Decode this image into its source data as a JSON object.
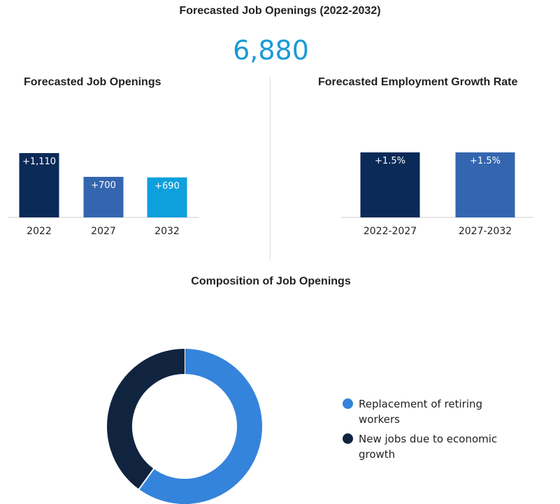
{
  "header": {
    "title": "Forecasted Job Openings (2022-2032)",
    "total": "6,880"
  },
  "chart_data": [
    {
      "type": "bar",
      "title": "Forecasted Job Openings",
      "categories": [
        "2022",
        "2027",
        "2032"
      ],
      "values": [
        1110,
        700,
        690
      ],
      "labels": [
        "+1,110",
        "+700",
        "+690"
      ],
      "colors": [
        "#0b2a58",
        "#3466b0",
        "#0ea0dd"
      ]
    },
    {
      "type": "bar",
      "title": "Forecasted Employment Growth Rate",
      "categories": [
        "2022-2027",
        "2027-2032"
      ],
      "values": [
        1.5,
        1.5
      ],
      "labels": [
        "+1.5%",
        "+1.5%"
      ],
      "colors": [
        "#0b2a58",
        "#3466b0"
      ]
    },
    {
      "type": "pie",
      "title": "Composition of Job Openings",
      "categories": [
        "Replacement of retiring workers",
        "New jobs due to economic growth"
      ],
      "values": [
        60,
        40
      ],
      "colors": [
        "#3584db",
        "#102440"
      ]
    }
  ]
}
